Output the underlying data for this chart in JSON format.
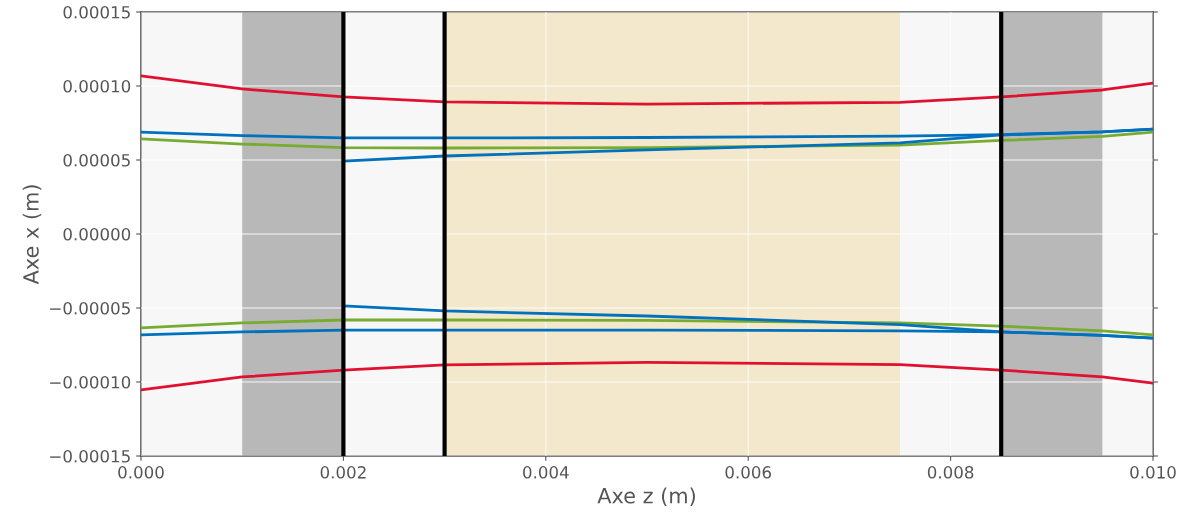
{
  "chart_data": {
    "type": "line",
    "xlabel": "Axe z (m)",
    "ylabel": "Axe x (m)",
    "x": [
      0,
      0.001,
      0.002,
      0.003,
      0.005,
      0.0075,
      0.0085,
      0.0095,
      0.01
    ],
    "series": [
      {
        "color": "#e0102f",
        "values": [
          0.0001068,
          9.8e-05,
          9.26e-05,
          8.92e-05,
          8.78e-05,
          8.9e-05,
          9.26e-05,
          9.73e-05,
          0.000102
        ]
      },
      {
        "color": "#e0102f",
        "values": [
          -0.0001054,
          -9.66e-05,
          -9.19e-05,
          -8.85e-05,
          -8.68e-05,
          -8.82e-05,
          -9.19e-05,
          -9.66e-05,
          -0.0001007
        ]
      },
      {
        "color": "#0072bd",
        "values": [
          6.89e-05,
          6.65e-05,
          6.49e-05,
          6.49e-05,
          6.52e-05,
          6.62e-05,
          6.72e-05,
          6.9e-05,
          7.09e-05
        ]
      },
      {
        "color": "#0072bd",
        "values": [
          -6.82e-05,
          -6.62e-05,
          -6.49e-05,
          -6.49e-05,
          -6.49e-05,
          -6.55e-05,
          -6.62e-05,
          -6.85e-05,
          -7.03e-05
        ]
      },
      {
        "color": "#77ac30",
        "values": [
          6.42e-05,
          6.08e-05,
          5.84e-05,
          5.81e-05,
          5.84e-05,
          6.01e-05,
          6.32e-05,
          6.6e-05,
          6.89e-05
        ]
      },
      {
        "color": "#77ac30",
        "values": [
          -6.35e-05,
          -6.01e-05,
          -5.81e-05,
          -5.81e-05,
          -5.84e-05,
          -6.01e-05,
          -6.22e-05,
          -6.55e-05,
          -6.82e-05
        ]
      },
      {
        "color": "#0072bd",
        "x": [
          0.002,
          0.003,
          0.005,
          0.0075,
          0.0085,
          0.0095,
          0.01
        ],
        "values": [
          4.93e-05,
          5.27e-05,
          5.68e-05,
          6.15e-05,
          6.69e-05,
          6.9e-05,
          7.09e-05
        ]
      },
      {
        "color": "#0072bd",
        "x": [
          0.002,
          0.003,
          0.005,
          0.0075,
          0.0085,
          0.0095,
          0.01
        ],
        "values": [
          -4.86e-05,
          -5.2e-05,
          -5.54e-05,
          -6.12e-05,
          -6.62e-05,
          -6.85e-05,
          -7.03e-05
        ]
      }
    ],
    "xlim": [
      0,
      0.01
    ],
    "xticks": [
      {
        "value": 0,
        "label": "0.000"
      },
      {
        "value": 0.002,
        "label": "0.002"
      },
      {
        "value": 0.004,
        "label": "0.004"
      },
      {
        "value": 0.006,
        "label": "0.006"
      },
      {
        "value": 0.008,
        "label": "0.008"
      },
      {
        "value": 0.01,
        "label": "0.010"
      }
    ],
    "ylim": [
      -0.00015,
      0.00015
    ],
    "yticks": [
      {
        "value": -0.00015,
        "label": "−0.00015"
      },
      {
        "value": -0.0001,
        "label": "−0.00010"
      },
      {
        "value": -5e-05,
        "label": "−0.00005"
      },
      {
        "value": 0,
        "label": "0.00000"
      },
      {
        "value": 5e-05,
        "label": "0.00005"
      },
      {
        "value": 0.0001,
        "label": "0.00010"
      },
      {
        "value": 0.00015,
        "label": "0.00015"
      }
    ],
    "bands": [
      {
        "axis": "x",
        "from": 0.001,
        "to": 0.002,
        "color": "#b8b8b8"
      },
      {
        "axis": "x",
        "from": 0.0085,
        "to": 0.0095,
        "color": "#b8b8b8"
      },
      {
        "axis": "x",
        "from": 0.003,
        "to": 0.0075,
        "color": "#f3e8cc"
      }
    ],
    "ref_lines": [
      {
        "axis": "x",
        "value": 0.002,
        "color": "#000000"
      },
      {
        "axis": "x",
        "value": 0.003,
        "color": "#000000"
      },
      {
        "axis": "x",
        "value": 0.0085,
        "color": "#000000"
      }
    ],
    "grid": true,
    "legend": false,
    "line_style": "solid",
    "marker": "none"
  }
}
